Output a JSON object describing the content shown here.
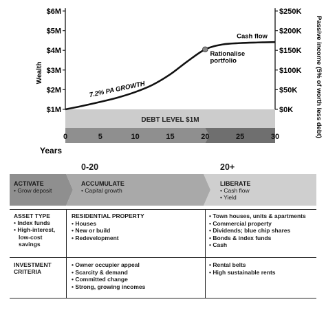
{
  "chart_data": {
    "type": "line",
    "x": [
      0,
      2.5,
      5,
      7.5,
      10,
      12.5,
      15,
      17.5,
      20,
      22.5,
      25,
      27.5,
      30
    ],
    "y": [
      1.0,
      1.18,
      1.38,
      1.6,
      1.88,
      2.25,
      2.78,
      3.45,
      4.05,
      4.3,
      4.37,
      4.4,
      4.42
    ],
    "xticks": [
      0,
      5,
      10,
      15,
      20,
      25,
      30
    ],
    "xlabel": "Years",
    "xlim": [
      0,
      30
    ],
    "yticks_left": [
      "$1M",
      "$2M",
      "$3M",
      "$4M",
      "$5M",
      "$6M"
    ],
    "ylabel_left": "Wealth",
    "ylim": [
      1,
      6
    ],
    "yticks_right": [
      "$0K",
      "$50K",
      "$100K",
      "$150K",
      "$200K",
      "$250K"
    ],
    "ylabel_right": "Passive income (5% of worth less debt)",
    "grid": false,
    "debt_level": 1,
    "annotations": {
      "growth": "7.2% PA GROWTH",
      "debt": "DEBT LEVEL $1M",
      "cashflow": "Cash flow",
      "rationalise": [
        "Rationalise",
        "portfolio"
      ]
    },
    "point": {
      "x": 20,
      "y": 4.05
    }
  },
  "phases": {
    "left_label": "0-20",
    "right_label": "20+",
    "activate": {
      "title": "ACTIVATE",
      "items": [
        "• Grow deposit"
      ]
    },
    "accumulate": {
      "title": "ACCUMULATE",
      "items": [
        "• Capital growth"
      ]
    },
    "liberate": {
      "title": "LIBERATE",
      "items": [
        "• Cash flow",
        "• Yield"
      ]
    }
  },
  "asset_type": {
    "label": [
      "ASSET TYPE",
      "• Index funds",
      "• High-interest,",
      "  low-cost",
      "  savings"
    ],
    "residential": [
      "RESIDENTIAL PROPERTY",
      "• Houses",
      "• New or build",
      "• Redevelopment"
    ],
    "liberate": [
      "• Town houses, units & apartments",
      "• Commercial property",
      "• Dividends; blue chip shares",
      "• Bonds & index funds",
      "• Cash"
    ]
  },
  "investment_criteria": {
    "label": [
      "INVESTMENT",
      "CRITERIA"
    ],
    "accumulate": [
      "• Owner occupier appeal",
      "• Scarcity & demand",
      "• Committed change",
      "• Strong, growing incomes"
    ],
    "liberate": [
      "• Rental belts",
      "• High sustainable rents"
    ]
  },
  "colors": {
    "band_dark": "#8f8f8f",
    "band_mid": "#a9a9a9",
    "band_light": "#cfcfcf",
    "debt_fill": "#cccccc",
    "line": "#111111"
  }
}
